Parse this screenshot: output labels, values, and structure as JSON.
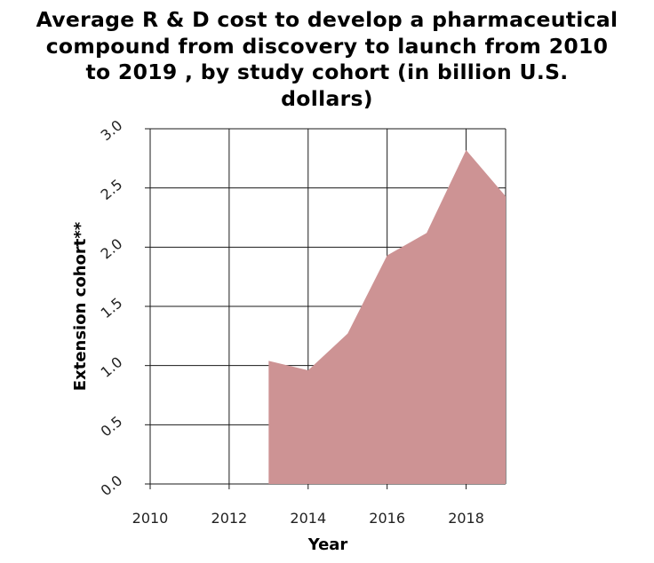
{
  "chart_data": {
    "type": "area",
    "title_lines": [
      "Average R & D cost to develop a pharmaceutical",
      "compound from discovery to launch from 2010",
      "to 2019 , by study cohort (in billion U.S.",
      "dollars)"
    ],
    "xlabel": "Year",
    "ylabel": "Extension cohort**",
    "xlim": [
      2010,
      2019
    ],
    "ylim": [
      0,
      3
    ],
    "x_ticks": [
      2010,
      2012,
      2014,
      2016,
      2018
    ],
    "y_ticks": [
      "0.0",
      "0.5",
      "1.0",
      "1.5",
      "2.0",
      "2.5",
      "3.0"
    ],
    "x": [
      2013,
      2014,
      2015,
      2016,
      2017,
      2018,
      2019
    ],
    "values": [
      1.04,
      0.96,
      1.27,
      1.93,
      2.12,
      2.82,
      2.43
    ],
    "fill_color": "#cd9394",
    "grid": true
  }
}
